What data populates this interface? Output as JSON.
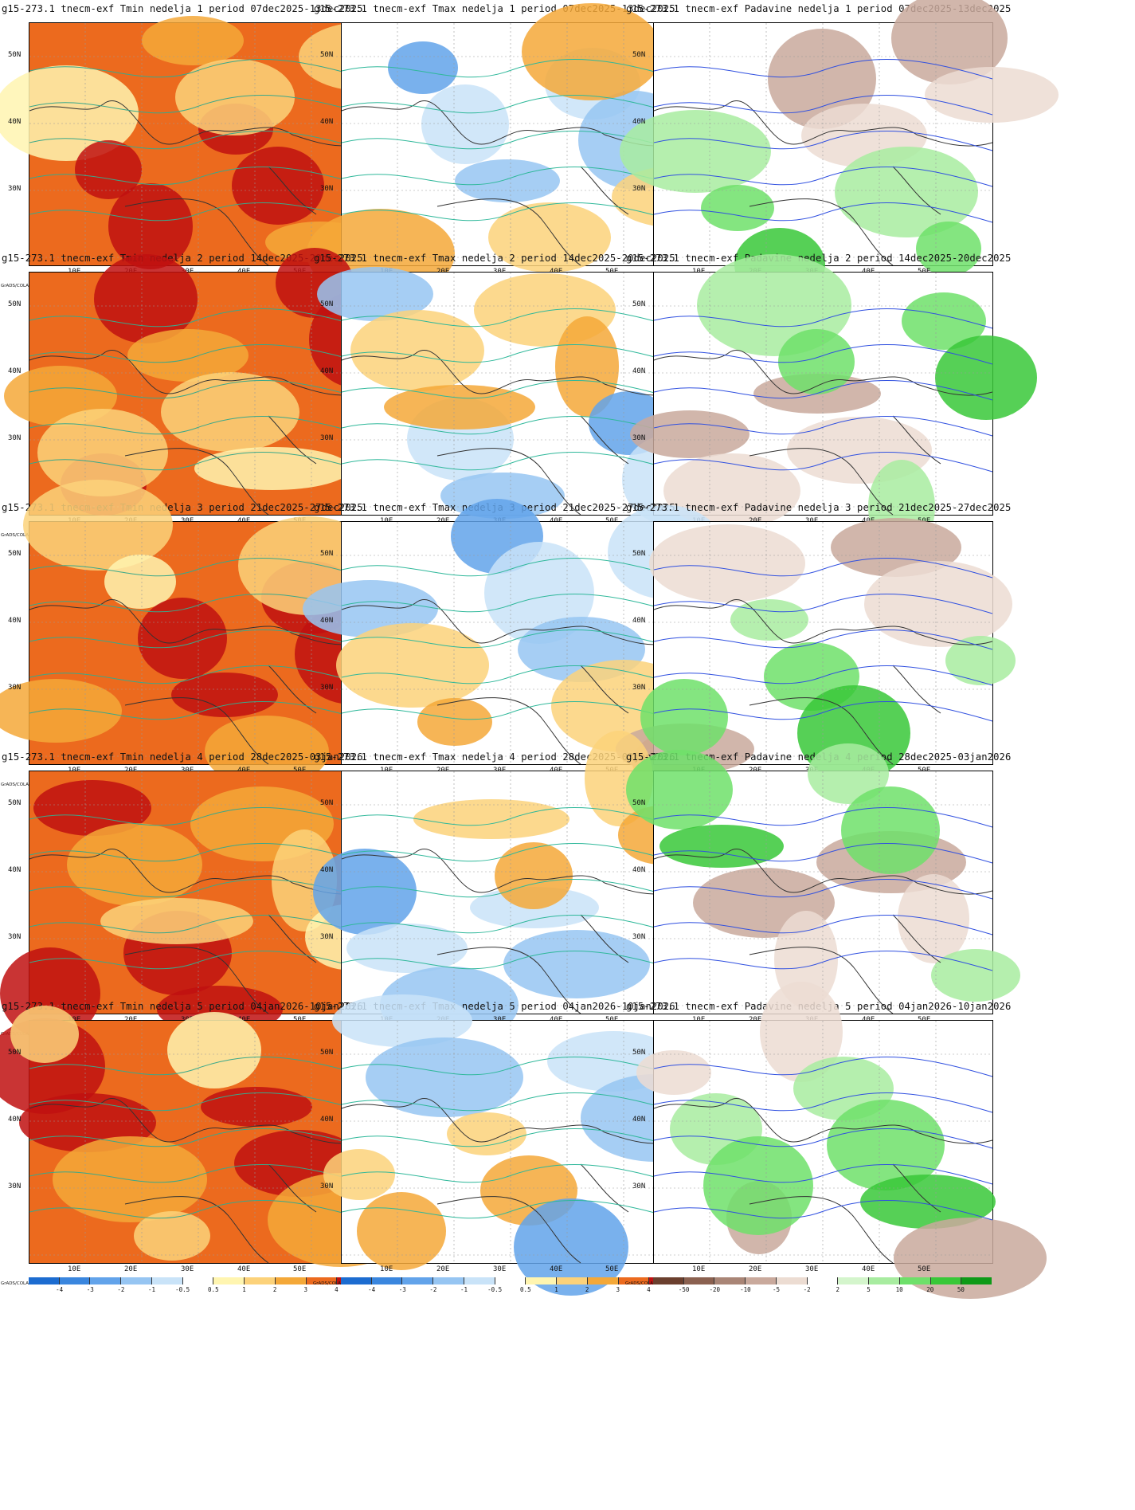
{
  "lat_labels": [
    "50N",
    "40N",
    "30N"
  ],
  "lon_labels": [
    "10E",
    "20E",
    "30E",
    "40E",
    "50E"
  ],
  "source_label": "GrADS/COLA",
  "temp_scale": {
    "labels": [
      "-4",
      "-3",
      "-2",
      "-1",
      "-0.5",
      "0.5",
      "1",
      "2",
      "3",
      "4"
    ],
    "colors": [
      "#1c6cd0",
      "#3a86de",
      "#62a3ea",
      "#96c5f2",
      "#c9e3f8",
      "#ffffff",
      "#fff5b0",
      "#fcd27a",
      "#f4a838",
      "#ec6a1e",
      "#c01010"
    ]
  },
  "precip_scale": {
    "labels": [
      "-50",
      "-20",
      "-10",
      "-5",
      "-2",
      "2",
      "5",
      "10",
      "20",
      "50"
    ],
    "colors": [
      "#6b3f2e",
      "#8b6150",
      "#a98576",
      "#c9a99c",
      "#ecdcd2",
      "#ffffff",
      "#d4f5cc",
      "#a8eca0",
      "#6ee06a",
      "#38c838",
      "#0e9a18"
    ]
  },
  "rows": [
    {
      "tmin": "g15-273.1 tnecm-exf Tmin nedelja 1 period 07dec2025-13dec2025",
      "tmax": "g15-273.1 tnecm-exf Tmax nedelja 1 period 07dec2025-13dec2025",
      "pad": "g15-273.1 tnecm-exf Padavine nedelja 1 period 07dec2025-13dec2025"
    },
    {
      "tmin": "g15-273.1 tnecm-exf Tmin nedelja 2 period 14dec2025-20dec2025",
      "tmax": "g15-273.1 tnecm-exf Tmax nedelja 2 period 14dec2025-20dec2025",
      "pad": "g15-273.1 tnecm-exf Padavine nedelja 2 period 14dec2025-20dec2025"
    },
    {
      "tmin": "g15-273.1 tnecm-exf Tmin nedelja 3 period 21dec2025-27dec2025",
      "tmax": "g15-273.1 tnecm-exf Tmax nedelja 3 period 21dec2025-27dec2025",
      "pad": "g15-273.1 tnecm-exf Padavine nedelja 3 period 21dec2025-27dec2025"
    },
    {
      "tmin": "g15-273.1 tnecm-exf Tmin nedelja 4 period 28dec2025-03jan2026",
      "tmax": "g15-273.1 tnecm-exf Tmax nedelja 4 period 28dec2025-03jan2026",
      "pad": "g15-273.1 tnecm-exf Padavine nedelja 4 period 28dec2025-03jan2026"
    },
    {
      "tmin": "g15-273.1 tnecm-exf Tmin nedelja 5 period 04jan2026-10jan2026",
      "tmax": "g15-273.1 tnecm-exf Tmax nedelja 5 period 04jan2026-10jan2026",
      "pad": "g15-273.1 tnecm-exf Padavine nedelja 5 period 04jan2026-10jan2026"
    }
  ]
}
